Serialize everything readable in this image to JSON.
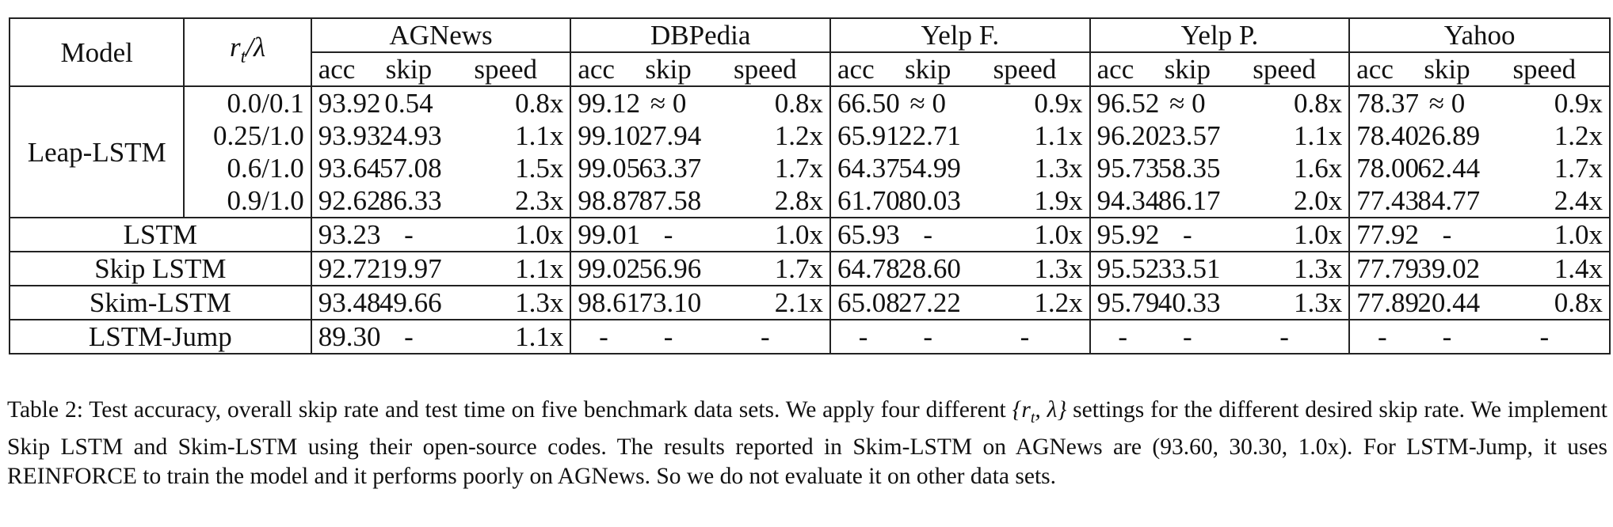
{
  "table": {
    "header": {
      "model": "Model",
      "param_prefix": "r",
      "param_sub": "t",
      "param_suffix": "/λ",
      "datasets": [
        "AGNews",
        "DBPedia",
        "Yelp F.",
        "Yelp P.",
        "Yahoo"
      ],
      "metrics": [
        "acc",
        "skip",
        "speed"
      ]
    },
    "leap": {
      "name": "Leap-LSTM",
      "rows": [
        {
          "param": "0.0/0.1",
          "cells": [
            "93.92",
            "0.54",
            "0.8x",
            "99.12",
            "≈ 0",
            "0.8x",
            "66.50",
            "≈ 0",
            "0.9x",
            "96.52",
            "≈ 0",
            "0.8x",
            "78.37",
            "≈ 0",
            "0.9x"
          ],
          "bold": [
            3,
            6,
            9
          ]
        },
        {
          "param": "0.25/1.0",
          "cells": [
            "93.93",
            "24.93",
            "1.1x",
            "99.10",
            "27.94",
            "1.2x",
            "65.91",
            "22.71",
            "1.1x",
            "96.20",
            "23.57",
            "1.1x",
            "78.40",
            "26.89",
            "1.2x"
          ],
          "bold": [
            0,
            12
          ]
        },
        {
          "param": "0.6/1.0",
          "cells": [
            "93.64",
            "57.08",
            "1.5x",
            "99.05",
            "63.37",
            "1.7x",
            "64.37",
            "54.99",
            "1.3x",
            "95.73",
            "58.35",
            "1.6x",
            "78.00",
            "62.44",
            "1.7x"
          ],
          "bold": []
        },
        {
          "param": "0.9/1.0",
          "cells": [
            "92.62",
            "86.33",
            "2.3x",
            "98.87",
            "87.58",
            "2.8x",
            "61.70",
            "80.03",
            "1.9x",
            "94.34",
            "86.17",
            "2.0x",
            "77.43",
            "84.77",
            "2.4x"
          ],
          "bold": []
        }
      ]
    },
    "baselines": [
      {
        "name": "LSTM",
        "cells": [
          "93.23",
          "-",
          "1.0x",
          "99.01",
          "-",
          "1.0x",
          "65.93",
          "-",
          "1.0x",
          "95.92",
          "-",
          "1.0x",
          "77.92",
          "-",
          "1.0x"
        ]
      },
      {
        "name": "Skip LSTM",
        "cells": [
          "92.72",
          "19.97",
          "1.1x",
          "99.02",
          "56.96",
          "1.7x",
          "64.78",
          "28.60",
          "1.3x",
          "95.52",
          "33.51",
          "1.3x",
          "77.79",
          "39.02",
          "1.4x"
        ]
      },
      {
        "name": "Skim-LSTM",
        "cells": [
          "93.48",
          "49.66",
          "1.3x",
          "98.61",
          "73.10",
          "2.1x",
          "65.08",
          "27.22",
          "1.2x",
          "95.79",
          "40.33",
          "1.3x",
          "77.89",
          "20.44",
          "0.8x"
        ]
      },
      {
        "name": "LSTM-Jump",
        "cells": [
          "89.30",
          "-",
          "1.1x",
          "-",
          "-",
          "-",
          "-",
          "-",
          "-",
          "-",
          "-",
          "-",
          "-",
          "-",
          "-"
        ]
      }
    ]
  },
  "caption": {
    "lead": "Table 2: Test accuracy, overall skip rate and test time on five benchmark data sets. We apply four different ",
    "math": "{r",
    "math_sub": "t",
    "math_end": ", λ}",
    "rest": " settings for the different desired skip rate.  We implement Skip LSTM and Skim-LSTM using their open-source codes.  The results reported in Skim-LSTM on AGNews are (93.60, 30.30, 1.0x). For LSTM-Jump, it uses REINFORCE to train the model and it performs poorly on AGNews. So we do not evaluate it on other data sets."
  }
}
